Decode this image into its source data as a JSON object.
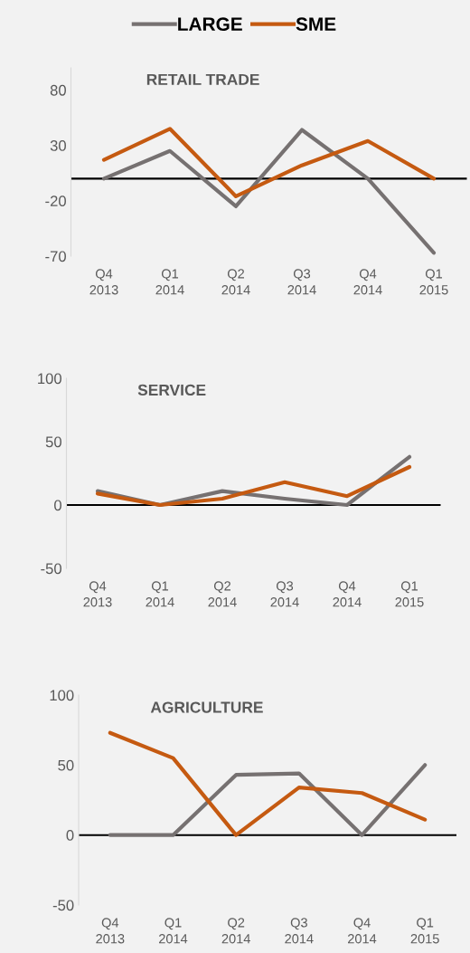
{
  "chart_data": [
    {
      "type": "line",
      "title": "RETAIL TRADE",
      "categories": [
        "Q4\n2013",
        "Q1\n2014",
        "Q2\n2014",
        "Q3\n2014",
        "Q4\n2014",
        "Q1\n2015"
      ],
      "legend": "top",
      "series": [
        {
          "name": "LARGE",
          "color": "#767171",
          "values": [
            0,
            25,
            -25,
            44,
            0,
            -67
          ]
        },
        {
          "name": "SME",
          "color": "#c55a11",
          "values": [
            17,
            45,
            -16,
            12,
            34,
            0
          ]
        }
      ],
      "ylim": [
        -70,
        100
      ],
      "yticks": [
        80,
        30,
        -20,
        -70
      ],
      "ref_lines": [
        {
          "axis": "y",
          "value": 0,
          "color": "#000000"
        }
      ],
      "grid": false
    },
    {
      "type": "line",
      "title": "SERVICE",
      "categories": [
        "Q4\n2013",
        "Q1\n2014",
        "Q2\n2014",
        "Q3\n2014",
        "Q4\n2014",
        "Q1\n2015"
      ],
      "series": [
        {
          "color": "#767171",
          "values": [
            11,
            0,
            11,
            5,
            0,
            38
          ]
        },
        {
          "color": "#c55a11",
          "values": [
            9,
            0,
            5,
            18,
            7,
            30
          ]
        }
      ],
      "ylim": [
        -50,
        100
      ],
      "yticks": [
        100,
        50,
        0,
        -50
      ],
      "ref_lines": [
        {
          "axis": "y",
          "value": 0,
          "color": "#000000"
        }
      ],
      "grid": false
    },
    {
      "type": "line",
      "title": "AGRICULTURE",
      "categories": [
        "Q4\n2013",
        "Q1\n2014",
        "Q2\n2014",
        "Q3\n2014",
        "Q4\n2014",
        "Q1\n2015"
      ],
      "series": [
        {
          "color": "#767171",
          "values": [
            0,
            0,
            43,
            44,
            0,
            50
          ]
        },
        {
          "color": "#c55a11",
          "values": [
            73,
            55,
            0,
            34,
            30,
            11
          ]
        }
      ],
      "ylim": [
        -50,
        100
      ],
      "yticks": [
        100,
        50,
        0,
        -50
      ],
      "ref_lines": [
        {
          "axis": "y",
          "value": 0,
          "color": "#000000"
        }
      ],
      "grid": false
    }
  ]
}
